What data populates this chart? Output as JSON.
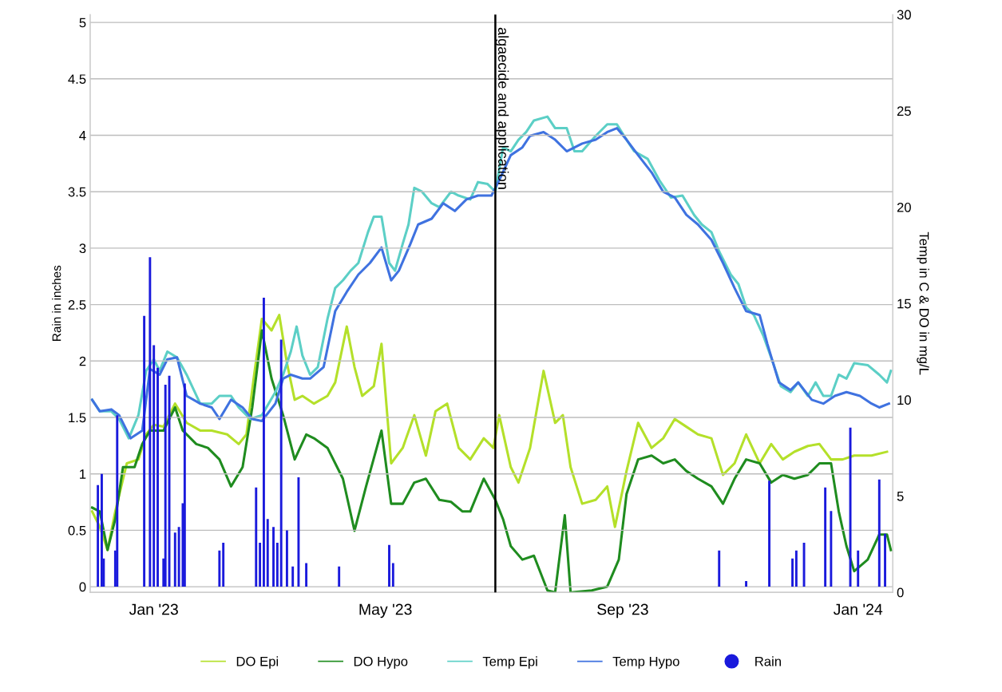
{
  "chart_data": {
    "type": "line",
    "ylabel": "Rain in inches",
    "y2label": "Temp in C & DO in mg/L",
    "xlim": [
      "2022-11-29",
      "2024-01-19"
    ],
    "xticks": [
      {
        "value": "2023-01-01",
        "label": "Jan '23"
      },
      {
        "value": "2023-05-01",
        "label": "May '23"
      },
      {
        "value": "2023-09-01",
        "label": "Sep '23"
      },
      {
        "value": "2024-01-01",
        "label": "Jan '24"
      }
    ],
    "ylim": [
      -0.05,
      5.07
    ],
    "yticks": [
      0,
      0.5,
      1,
      1.5,
      2,
      2.5,
      3,
      3.5,
      4,
      4.5,
      5
    ],
    "y2lim": [
      0,
      30
    ],
    "y2ticks": [
      0,
      5,
      10,
      15,
      20,
      25,
      30
    ],
    "grid": "y",
    "legend": "bottom",
    "ref_lines": [
      {
        "axis": "x",
        "value": "2023-06-27",
        "label": "algaecide and application",
        "color": "#000000"
      }
    ],
    "series": [
      {
        "name": "DO Epi",
        "axis": "y2",
        "color": "#b4e02a",
        "x": [
          "2022-11-30",
          "2022-12-04",
          "2022-12-08",
          "2022-12-12",
          "2022-12-18",
          "2022-12-24",
          "2022-12-28",
          "2023-01-01",
          "2023-01-06",
          "2023-01-12",
          "2023-01-18",
          "2023-01-25",
          "2023-01-31",
          "2023-02-08",
          "2023-02-14",
          "2023-02-18",
          "2023-02-22",
          "2023-02-26",
          "2023-03-03",
          "2023-03-07",
          "2023-03-11",
          "2023-03-15",
          "2023-03-19",
          "2023-03-25",
          "2023-04-01",
          "2023-04-05",
          "2023-04-11",
          "2023-04-15",
          "2023-04-19",
          "2023-04-25",
          "2023-04-29",
          "2023-05-04",
          "2023-05-10",
          "2023-05-16",
          "2023-05-22",
          "2023-05-27",
          "2023-06-02",
          "2023-06-08",
          "2023-06-14",
          "2023-06-21",
          "2023-06-26",
          "2023-06-29",
          "2023-07-05",
          "2023-07-09",
          "2023-07-15",
          "2023-07-22",
          "2023-07-28",
          "2023-08-01",
          "2023-08-05",
          "2023-08-11",
          "2023-08-18",
          "2023-08-24",
          "2023-08-28",
          "2023-09-03",
          "2023-09-09",
          "2023-09-16",
          "2023-09-22",
          "2023-09-28",
          "2023-10-04",
          "2023-10-10",
          "2023-10-17",
          "2023-10-23",
          "2023-10-29",
          "2023-11-04",
          "2023-11-11",
          "2023-11-17",
          "2023-11-23",
          "2023-11-29",
          "2023-12-06",
          "2023-12-12",
          "2023-12-18",
          "2023-12-24",
          "2023-12-30",
          "2024-01-08",
          "2024-01-16"
        ],
        "values": [
          4.2,
          3.4,
          2.2,
          4.2,
          6.7,
          6.9,
          8.2,
          8.7,
          8.6,
          9.8,
          8.8,
          8.4,
          8.4,
          8.2,
          7.7,
          8.2,
          11.3,
          14.2,
          13.6,
          14.4,
          11.9,
          10.0,
          10.2,
          9.8,
          10.2,
          10.9,
          13.8,
          11.7,
          10.2,
          10.7,
          12.9,
          6.7,
          7.5,
          9.2,
          7.1,
          9.4,
          9.8,
          7.5,
          6.9,
          8.0,
          7.5,
          9.2,
          6.5,
          5.7,
          7.5,
          11.5,
          8.8,
          9.2,
          6.5,
          4.6,
          4.8,
          5.5,
          3.4,
          6.3,
          8.8,
          7.5,
          8.0,
          9.0,
          8.6,
          8.2,
          8.0,
          6.1,
          6.7,
          8.2,
          6.7,
          7.7,
          6.9,
          7.3,
          7.6,
          7.7,
          6.9,
          6.9,
          7.1,
          7.1,
          7.3
        ]
      },
      {
        "name": "DO Hypo",
        "axis": "y2",
        "color": "#1f8c1f",
        "x": [
          "2022-11-30",
          "2022-12-04",
          "2022-12-08",
          "2022-12-12",
          "2022-12-16",
          "2022-12-22",
          "2022-12-26",
          "2022-12-30",
          "2023-01-06",
          "2023-01-12",
          "2023-01-16",
          "2023-01-23",
          "2023-01-29",
          "2023-02-04",
          "2023-02-10",
          "2023-02-16",
          "2023-02-21",
          "2023-02-26",
          "2023-03-03",
          "2023-03-09",
          "2023-03-15",
          "2023-03-21",
          "2023-03-25",
          "2023-04-01",
          "2023-04-09",
          "2023-04-15",
          "2023-04-21",
          "2023-04-29",
          "2023-05-04",
          "2023-05-10",
          "2023-05-16",
          "2023-05-22",
          "2023-05-29",
          "2023-06-04",
          "2023-06-10",
          "2023-06-14",
          "2023-06-21",
          "2023-06-27",
          "2023-07-01",
          "2023-07-05",
          "2023-07-11",
          "2023-07-17",
          "2023-07-24",
          "2023-07-28",
          "2023-08-02",
          "2023-08-05",
          "2023-08-16",
          "2023-08-24",
          "2023-08-30",
          "2023-09-03",
          "2023-09-09",
          "2023-09-16",
          "2023-09-22",
          "2023-09-28",
          "2023-10-04",
          "2023-10-10",
          "2023-10-17",
          "2023-10-23",
          "2023-10-29",
          "2023-11-04",
          "2023-11-11",
          "2023-11-17",
          "2023-11-23",
          "2023-11-29",
          "2023-12-06",
          "2023-12-12",
          "2023-12-18",
          "2023-12-22",
          "2023-12-26",
          "2023-12-30",
          "2024-01-06",
          "2024-01-12",
          "2024-01-16",
          "2024-01-18"
        ],
        "values": [
          4.4,
          4.2,
          2.2,
          3.8,
          6.5,
          6.5,
          7.7,
          8.4,
          8.4,
          9.6,
          8.4,
          7.7,
          7.5,
          6.9,
          5.5,
          6.5,
          9.6,
          13.6,
          11.1,
          9.2,
          6.9,
          8.2,
          8.0,
          7.5,
          5.9,
          3.2,
          5.5,
          8.4,
          4.6,
          4.6,
          5.7,
          5.9,
          4.8,
          4.7,
          4.2,
          4.2,
          5.9,
          4.8,
          3.8,
          2.4,
          1.7,
          1.9,
          0.1,
          0,
          4.0,
          0,
          0.1,
          0.3,
          1.7,
          5.1,
          6.9,
          7.1,
          6.7,
          6.9,
          6.3,
          5.9,
          5.5,
          4.6,
          5.9,
          6.9,
          6.7,
          5.7,
          6.1,
          5.9,
          6.1,
          6.7,
          6.7,
          4.2,
          2.4,
          1.1,
          1.7,
          3.0,
          3.0,
          2.2
        ]
      },
      {
        "name": "Temp Epi",
        "axis": "y2",
        "color": "#5ccfc6",
        "x": [
          "2022-11-30",
          "2022-12-04",
          "2022-12-10",
          "2022-12-14",
          "2022-12-19",
          "2022-12-24",
          "2022-12-28",
          "2023-01-01",
          "2023-01-04",
          "2023-01-08",
          "2023-01-13",
          "2023-01-18",
          "2023-01-25",
          "2023-01-31",
          "2023-02-04",
          "2023-02-10",
          "2023-02-14",
          "2023-02-20",
          "2023-02-26",
          "2023-03-05",
          "2023-03-09",
          "2023-03-13",
          "2023-03-16",
          "2023-03-19",
          "2023-03-23",
          "2023-03-27",
          "2023-04-01",
          "2023-04-05",
          "2023-04-09",
          "2023-04-13",
          "2023-04-17",
          "2023-04-22",
          "2023-04-25",
          "2023-04-29",
          "2023-05-03",
          "2023-05-06",
          "2023-05-10",
          "2023-05-13",
          "2023-05-16",
          "2023-05-20",
          "2023-05-25",
          "2023-05-29",
          "2023-06-04",
          "2023-06-08",
          "2023-06-14",
          "2023-06-18",
          "2023-06-23",
          "2023-06-27",
          "2023-07-01",
          "2023-07-05",
          "2023-07-09",
          "2023-07-13",
          "2023-07-17",
          "2023-07-24",
          "2023-07-28",
          "2023-08-03",
          "2023-08-07",
          "2023-08-11",
          "2023-08-18",
          "2023-08-24",
          "2023-08-29",
          "2023-09-03",
          "2023-09-07",
          "2023-09-14",
          "2023-09-20",
          "2023-09-26",
          "2023-10-02",
          "2023-10-08",
          "2023-10-12",
          "2023-10-17",
          "2023-10-21",
          "2023-10-27",
          "2023-10-31",
          "2023-11-04",
          "2023-11-08",
          "2023-11-13",
          "2023-11-18",
          "2023-11-22",
          "2023-11-27",
          "2023-12-01",
          "2023-12-06",
          "2023-12-10",
          "2023-12-14",
          "2023-12-18",
          "2023-12-22",
          "2023-12-26",
          "2023-12-30",
          "2024-01-06",
          "2024-01-12",
          "2024-01-16",
          "2024-01-18"
        ],
        "values": [
          10.0,
          9.4,
          9.4,
          9.0,
          8.0,
          9.2,
          11.5,
          12.1,
          11.5,
          12.5,
          12.2,
          11.3,
          9.8,
          9.8,
          10.2,
          10.2,
          9.6,
          9.0,
          9.2,
          10.4,
          11.3,
          12.5,
          13.8,
          12.3,
          11.3,
          11.7,
          14.2,
          15.8,
          16.2,
          16.7,
          17.1,
          18.7,
          19.5,
          19.5,
          17.1,
          16.7,
          18.1,
          19.1,
          21.0,
          20.8,
          20.2,
          20.0,
          20.8,
          20.6,
          20.4,
          21.3,
          21.2,
          20.8,
          23.1,
          22.9,
          23.5,
          23.9,
          24.5,
          24.7,
          24.1,
          24.1,
          22.9,
          22.9,
          23.7,
          24.3,
          24.3,
          23.5,
          22.9,
          22.5,
          21.4,
          20.5,
          20.6,
          19.6,
          19.1,
          18.7,
          17.7,
          16.5,
          16.0,
          14.8,
          14.4,
          13.3,
          11.9,
          10.7,
          10.4,
          10.9,
          10.2,
          10.9,
          10.2,
          10.2,
          11.3,
          11.1,
          11.9,
          11.8,
          11.3,
          10.9,
          11.5
        ]
      },
      {
        "name": "Temp Hypo",
        "axis": "y2",
        "color": "#3f72e0",
        "x": [
          "2022-11-30",
          "2022-12-04",
          "2022-12-10",
          "2022-12-14",
          "2022-12-20",
          "2022-12-26",
          "2022-12-30",
          "2023-01-04",
          "2023-01-08",
          "2023-01-13",
          "2023-01-18",
          "2023-01-25",
          "2023-01-31",
          "2023-02-04",
          "2023-02-10",
          "2023-02-16",
          "2023-02-21",
          "2023-02-26",
          "2023-03-05",
          "2023-03-09",
          "2023-03-13",
          "2023-03-19",
          "2023-03-23",
          "2023-03-30",
          "2023-04-05",
          "2023-04-11",
          "2023-04-17",
          "2023-04-23",
          "2023-04-29",
          "2023-05-04",
          "2023-05-08",
          "2023-05-14",
          "2023-05-18",
          "2023-05-25",
          "2023-05-31",
          "2023-06-06",
          "2023-06-12",
          "2023-06-18",
          "2023-06-25",
          "2023-06-29",
          "2023-07-05",
          "2023-07-11",
          "2023-07-15",
          "2023-07-22",
          "2023-07-28",
          "2023-08-03",
          "2023-08-11",
          "2023-08-18",
          "2023-08-24",
          "2023-08-29",
          "2023-09-03",
          "2023-09-09",
          "2023-09-16",
          "2023-09-22",
          "2023-09-28",
          "2023-10-04",
          "2023-10-10",
          "2023-10-17",
          "2023-10-23",
          "2023-10-29",
          "2023-11-04",
          "2023-11-11",
          "2023-11-15",
          "2023-11-21",
          "2023-11-27",
          "2023-12-01",
          "2023-12-08",
          "2023-12-14",
          "2023-12-20",
          "2023-12-26",
          "2024-01-02",
          "2024-01-08",
          "2024-01-12",
          "2024-01-17"
        ],
        "values": [
          10.0,
          9.4,
          9.5,
          9.2,
          8.0,
          8.4,
          11.6,
          11.3,
          12.1,
          12.2,
          10.2,
          9.8,
          9.6,
          9.0,
          10.0,
          9.6,
          9.0,
          8.9,
          9.8,
          11.1,
          11.3,
          11.1,
          11.1,
          11.7,
          14.6,
          15.6,
          16.5,
          17.1,
          17.9,
          16.2,
          16.7,
          18.1,
          19.1,
          19.4,
          20.2,
          19.8,
          20.4,
          20.6,
          20.6,
          21.4,
          22.7,
          23.1,
          23.7,
          23.9,
          23.5,
          22.9,
          23.3,
          23.5,
          23.9,
          24.1,
          23.5,
          22.7,
          21.8,
          20.8,
          20.5,
          19.6,
          19.1,
          18.3,
          17.1,
          15.8,
          14.6,
          14.4,
          12.9,
          10.9,
          10.5,
          10.9,
          10.0,
          9.8,
          10.2,
          10.4,
          10.2,
          9.8,
          9.6,
          9.8
        ]
      },
      {
        "name": "Rain",
        "type": "bar",
        "color": "#1a1adc",
        "x": [
          "2022-12-03",
          "2022-12-05",
          "2022-12-06",
          "2022-12-12",
          "2022-12-13",
          "2022-12-27",
          "2022-12-30",
          "2023-01-01",
          "2023-01-03",
          "2023-01-06",
          "2023-01-07",
          "2023-01-09",
          "2023-01-12",
          "2023-01-14",
          "2023-01-16",
          "2023-01-17",
          "2023-02-04",
          "2023-02-06",
          "2023-02-23",
          "2023-02-25",
          "2023-02-27",
          "2023-03-01",
          "2023-03-04",
          "2023-03-06",
          "2023-03-08",
          "2023-03-11",
          "2023-03-14",
          "2023-03-17",
          "2023-03-21",
          "2023-04-07",
          "2023-05-03",
          "2023-05-05",
          "2023-10-21",
          "2023-11-04",
          "2023-11-16",
          "2023-11-28",
          "2023-11-30",
          "2023-12-04",
          "2023-12-15",
          "2023-12-18",
          "2023-12-28",
          "2024-01-01",
          "2024-01-12",
          "2024-01-15"
        ],
        "values": [
          0.9,
          1.0,
          0.25,
          0.32,
          1.52,
          2.4,
          2.92,
          2.14,
          1.94,
          0.25,
          1.79,
          1.87,
          0.48,
          0.53,
          0.74,
          1.8,
          0.32,
          0.39,
          0.88,
          0.39,
          2.56,
          0.6,
          0.53,
          0.39,
          2.19,
          0.5,
          0.18,
          0.97,
          0.21,
          0.18,
          0.37,
          0.21,
          0.32,
          0.05,
          0.94,
          0.25,
          0.32,
          0.39,
          0.88,
          0.67,
          1.41,
          0.32,
          0.95,
          0.47
        ]
      }
    ]
  }
}
